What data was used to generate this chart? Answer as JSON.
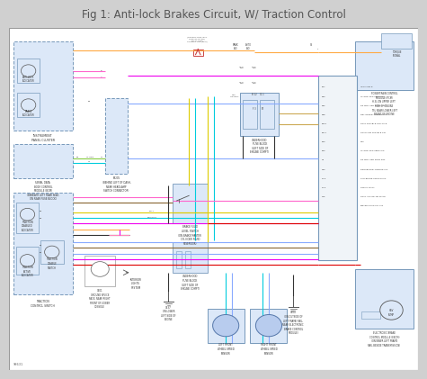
{
  "title": "Fig 1: Anti-lock Brakes Circuit, W/ Traction Control",
  "bg_color": "#d0d0d0",
  "diagram_bg": "#ffffff",
  "title_color": "#555555",
  "title_fontsize": 8.5,
  "watermark": "98631"
}
